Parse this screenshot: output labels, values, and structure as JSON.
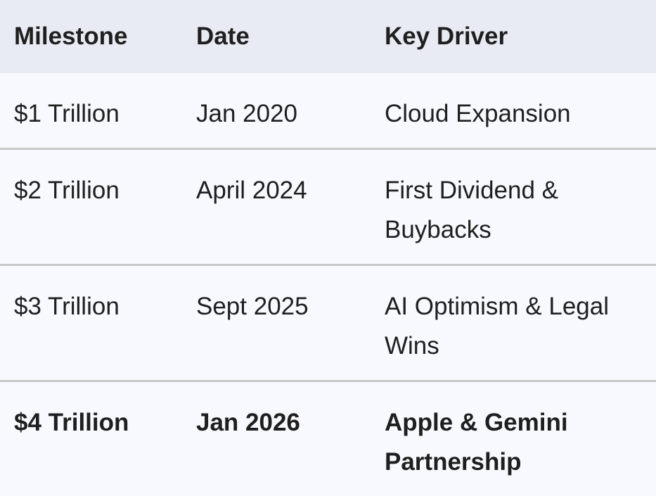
{
  "table": {
    "headers": [
      "Milestone",
      "Date",
      "Key Driver"
    ],
    "rows": [
      [
        "$1 Trillion",
        "Jan 2020",
        "Cloud Expansion"
      ],
      [
        "$2 Trillion",
        "April 2024",
        "First Dividend & Buybacks"
      ],
      [
        "$3 Trillion",
        "Sept 2025",
        "AI Optimism & Legal Wins"
      ],
      [
        "$4 Trillion",
        "Jan 2026",
        "Apple & Gemini Partnership"
      ]
    ]
  },
  "colors": {
    "header_bg": "#e8ebf3",
    "row_bg": "#f8f9fe",
    "divider": "#c8c8cb"
  }
}
